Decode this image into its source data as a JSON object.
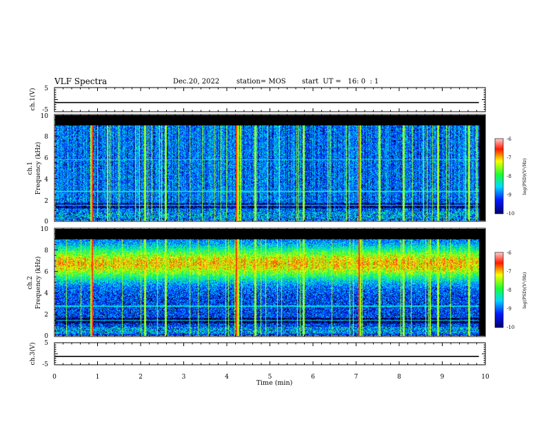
{
  "header": {
    "title": "VLF Spectra",
    "date": "Dec.20, 2022",
    "station": "station= MOS",
    "start": "start  UT =   16: 0  : 1"
  },
  "colors": {
    "black": "#000000",
    "dark_blue": "#00006e",
    "blue": "#0018ff",
    "cyan": "#00d9ff",
    "green": "#1aff33",
    "yellow": "#f8ff00",
    "red": "#ff1a00",
    "pink": "#ffd0d0"
  },
  "chart_data": [
    {
      "type": "line",
      "ylabel": "ch.1(V)",
      "ylim": [
        -5,
        5
      ],
      "yticks": [
        "5",
        "-5"
      ],
      "trace_level": -1.2
    },
    {
      "type": "heatmap",
      "ylabel_line1": "ch.1",
      "ylabel_line2": "Frequency (kHz)",
      "ylim": [
        0,
        10
      ],
      "yticks": [
        "0",
        "2",
        "4",
        "6",
        "8",
        "10"
      ],
      "xlim": [
        0,
        10
      ],
      "data_end_min": 9.85,
      "band_top_khz": 9.0,
      "colorbar": {
        "label": "log(PSD)(V²/Hz)",
        "range": [
          -10,
          -6
        ],
        "ticks": [
          "-6",
          "-7",
          "-8",
          "-9",
          "-10"
        ]
      }
    },
    {
      "type": "heatmap",
      "ylabel_line1": "ch.2",
      "ylabel_line2": "Frequency (kHz)",
      "ylim": [
        0,
        10
      ],
      "yticks": [
        "0",
        "2",
        "4",
        "6",
        "8",
        "10"
      ],
      "xlim": [
        0,
        10
      ],
      "data_end_min": 9.85,
      "band_top_khz": 9.0,
      "colorbar": {
        "label": "log(PSD)(V²/Hz)",
        "range": [
          -10,
          -6
        ],
        "ticks": [
          "-6",
          "-7",
          "-8",
          "-9",
          "-10"
        ]
      }
    },
    {
      "type": "line",
      "ylabel": "ch.3(V)",
      "ylim": [
        -5,
        5
      ],
      "yticks": [
        "5",
        "-5"
      ],
      "trace_level": -1.2,
      "xlabel": "Time (min)",
      "xlim": [
        0,
        10
      ],
      "xticks": [
        "0",
        "1",
        "2",
        "3",
        "4",
        "5",
        "6",
        "7",
        "8",
        "9",
        "10"
      ]
    }
  ]
}
